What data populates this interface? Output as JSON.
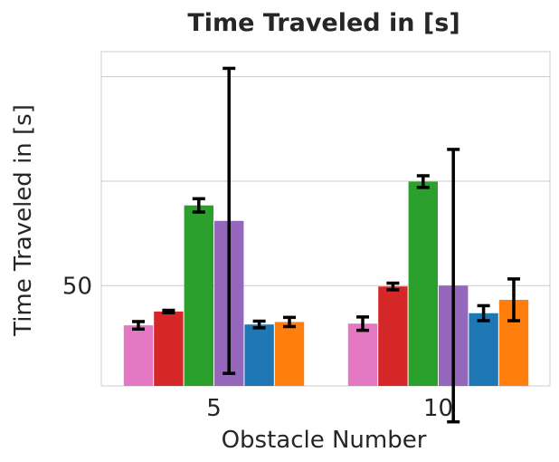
{
  "chart_data": {
    "type": "bar",
    "title": "Time Traveled in [s]",
    "xlabel": "Obstacle Number",
    "ylabel": "Time Traveled in [s]",
    "categories": [
      "5",
      "10"
    ],
    "yticks": [
      50
    ],
    "ylim": [
      26,
      106
    ],
    "grid": true,
    "series": [
      {
        "color": "#e377c2",
        "values": [
          40.5,
          40.9
        ],
        "errors": [
          0.9,
          1.6
        ]
      },
      {
        "color": "#d62728",
        "values": [
          43.8,
          49.8
        ],
        "errors": [
          0.3,
          0.8
        ]
      },
      {
        "color": "#2ca02c",
        "values": [
          69.2,
          74.9
        ],
        "errors": [
          1.6,
          1.4
        ]
      },
      {
        "color": "#9467bd",
        "values": [
          65.5,
          50.0
        ],
        "errors": [
          36.5,
          32.6
        ]
      },
      {
        "color": "#1f77b4",
        "values": [
          40.7,
          43.4
        ],
        "errors": [
          0.8,
          1.8
        ]
      },
      {
        "color": "#ff7f0e",
        "values": [
          41.3,
          46.6
        ],
        "errors": [
          1.1,
          5.0
        ]
      }
    ]
  }
}
